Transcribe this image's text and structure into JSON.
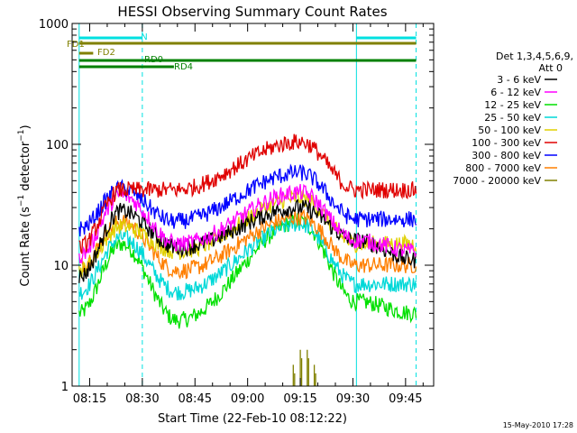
{
  "chart_data": {
    "type": "line",
    "title": "HESSI Observing Summary Count Rates",
    "xlabel": "Start Time (22-Feb-10 08:12:22)",
    "ylabel": "Count Rate (s⁻¹ detector⁻¹)",
    "ylabel_main": "Count Rate (s",
    "ylabel_sup1": "−1",
    "ylabel_mid": " detector",
    "ylabel_sup2": "−1",
    "ylabel_end": ")",
    "x_unit": "minutes past 08:00",
    "xlim_labels": [
      "08:10",
      "09:53"
    ],
    "x_tick_labels": [
      "08:15",
      "08:30",
      "08:45",
      "09:00",
      "09:15",
      "09:30",
      "09:45"
    ],
    "y_scale": "log",
    "ylim": [
      1,
      1000
    ],
    "y_tick_labels": [
      "1",
      "10",
      "100",
      "1000"
    ],
    "legend": {
      "placement": "right",
      "header_line1": "Det 1,3,4,5,6,9,",
      "header_line2": "Att 0"
    },
    "series": [
      {
        "name": "3 - 6 keV",
        "color": "#000000",
        "x": [
          "08:12",
          "08:24",
          "08:40",
          "09:15",
          "09:31",
          "09:48"
        ],
        "values": [
          8,
          28,
          14,
          30,
          16,
          11
        ]
      },
      {
        "name": "6 - 12 keV",
        "color": "#ff00ff",
        "x": [
          "08:12",
          "08:24",
          "08:40",
          "09:15",
          "09:31",
          "09:48"
        ],
        "values": [
          12,
          38,
          15,
          40,
          16,
          13
        ]
      },
      {
        "name": "12 - 25 keV",
        "color": "#00e000",
        "x": [
          "08:12",
          "08:24",
          "08:40",
          "09:15",
          "09:31",
          "09:48"
        ],
        "values": [
          4,
          15,
          3.5,
          23,
          5,
          4
        ]
      },
      {
        "name": "25 - 50 keV",
        "color": "#00d8d8",
        "x": [
          "08:12",
          "08:24",
          "08:40",
          "09:15",
          "09:31",
          "09:48"
        ],
        "values": [
          6,
          17,
          6,
          22,
          7,
          7
        ]
      },
      {
        "name": "50 - 100 keV",
        "color": "#e0d000",
        "x": [
          "08:12",
          "08:24",
          "08:40",
          "09:15",
          "09:31",
          "09:48"
        ],
        "values": [
          9,
          21,
          13,
          36,
          15,
          15
        ]
      },
      {
        "name": "100 - 300 keV",
        "color": "#e00000",
        "x": [
          "08:12",
          "08:24",
          "08:39",
          "09:15",
          "09:31",
          "09:48"
        ],
        "values": [
          14,
          42,
          42,
          105,
          42,
          42
        ]
      },
      {
        "name": "300 - 800 keV",
        "color": "#0000ff",
        "x": [
          "08:12",
          "08:24",
          "08:39",
          "09:15",
          "09:31",
          "09:48"
        ],
        "values": [
          20,
          43,
          23,
          58,
          24,
          24
        ]
      },
      {
        "name": "800 - 7000 keV",
        "color": "#ff7f00",
        "x": [
          "08:12",
          "08:24",
          "08:40",
          "09:15",
          "09:31",
          "09:48"
        ],
        "values": [
          10,
          23,
          9,
          25,
          10,
          10
        ]
      },
      {
        "name": "7000 - 20000 keV",
        "color": "#808000",
        "x": [
          "09:13",
          "09:15",
          "09:17",
          "09:19"
        ],
        "values": [
          1.5,
          2,
          2,
          1.5
        ]
      }
    ],
    "state_bars": [
      {
        "label": "N",
        "color": "#00e0e0",
        "segments": [
          [
            "08:12",
            "08:30"
          ],
          [
            "09:31",
            "09:48"
          ]
        ]
      },
      {
        "label": "FD1",
        "color": "#808000",
        "segments": [
          [
            "08:12",
            "09:48"
          ]
        ]
      },
      {
        "label": "FD2",
        "color": "#808000",
        "segments": [
          [
            "08:12",
            "08:16"
          ]
        ]
      },
      {
        "label": "RD0",
        "color": "#008000",
        "segments": [
          [
            "08:12",
            "09:48"
          ]
        ]
      },
      {
        "label": "RD4",
        "color": "#008000",
        "segments": [
          [
            "08:12",
            "08:39"
          ]
        ]
      }
    ],
    "vertical_lines": [
      {
        "time": "08:12",
        "style": "solid",
        "color": "#00e0e0"
      },
      {
        "time": "08:30",
        "style": "dashed",
        "color": "#00e0e0"
      },
      {
        "time": "09:31",
        "style": "solid",
        "color": "#00e0e0"
      },
      {
        "time": "09:48",
        "style": "dashed",
        "color": "#00e0e0"
      }
    ],
    "footer_timestamp": "15-May-2010 17:28"
  }
}
